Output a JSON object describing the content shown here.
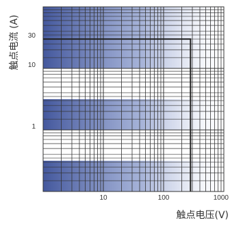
{
  "chart_data": {
    "type": "line",
    "title": "",
    "xlabel": "触点电压(V)",
    "ylabel": "触点电流 (A)",
    "x_scale": "log",
    "y_scale": "log",
    "xlim": [
      1,
      1000
    ],
    "ylim": [
      0.1,
      100
    ],
    "x_tick_labels": [
      {
        "value": 10,
        "label": "10"
      },
      {
        "value": 100,
        "label": "100"
      },
      {
        "value": 1000,
        "label": "1000"
      }
    ],
    "y_tick_labels": [
      {
        "value": 30,
        "label": "30"
      },
      {
        "value": 10,
        "label": "10"
      },
      {
        "value": 1,
        "label": "1"
      }
    ],
    "grid": true,
    "series": [
      {
        "x": [
          1,
          280,
          280
        ],
        "y": [
          30,
          30,
          0.1
        ]
      }
    ],
    "colors": {
      "line": "#222222",
      "grid": "#333333",
      "band": "#5a70b0",
      "text": "#333333"
    }
  }
}
